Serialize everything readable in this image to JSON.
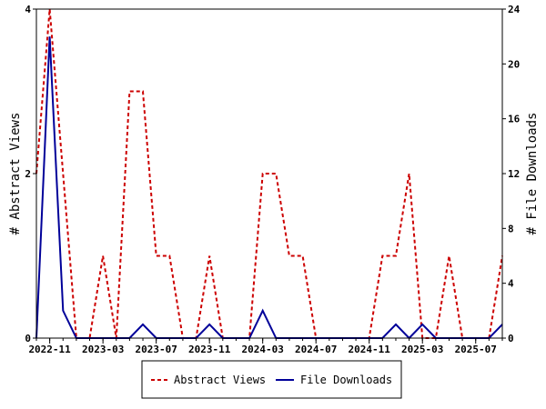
{
  "chart_data": {
    "type": "line",
    "x": [
      "2022-10",
      "2022-11",
      "2022-12",
      "2023-01",
      "2023-02",
      "2023-03",
      "2023-04",
      "2023-05",
      "2023-06",
      "2023-07",
      "2023-08",
      "2023-09",
      "2023-10",
      "2023-11",
      "2023-12",
      "2024-01",
      "2024-02",
      "2024-03",
      "2024-04",
      "2024-05",
      "2024-06",
      "2024-07",
      "2024-08",
      "2024-09",
      "2024-10",
      "2024-11",
      "2024-12",
      "2025-01",
      "2025-02",
      "2025-03",
      "2025-04",
      "2025-05",
      "2025-06",
      "2025-07",
      "2025-08",
      "2025-09"
    ],
    "series": [
      {
        "name": "Abstract Views",
        "axis": "left",
        "color": "#cc0000",
        "dash": "dashed",
        "values": [
          2,
          4,
          2,
          0,
          0,
          1,
          0,
          3,
          3,
          1,
          1,
          0,
          0,
          1,
          0,
          0,
          0,
          2,
          2,
          1,
          1,
          0,
          0,
          0,
          0,
          0,
          1,
          1,
          2,
          0,
          0,
          1,
          0,
          0,
          0,
          1
        ]
      },
      {
        "name": "File Downloads",
        "axis": "right",
        "color": "#000099",
        "dash": "solid",
        "values": [
          0,
          22,
          2,
          0,
          0,
          0,
          0,
          0,
          1,
          0,
          0,
          0,
          0,
          1,
          0,
          0,
          0,
          2,
          0,
          0,
          0,
          0,
          0,
          0,
          0,
          0,
          0,
          1,
          0,
          1,
          0,
          0,
          0,
          0,
          0,
          1
        ]
      }
    ],
    "x_tick_labels": [
      "2022-11",
      "2023-03",
      "2023-07",
      "2023-11",
      "2024-03",
      "2024-07",
      "2024-11",
      "2025-03",
      "2025-07"
    ],
    "y_left": {
      "label": "# Abstract Views",
      "range": [
        0,
        4
      ],
      "ticks": [
        0,
        2,
        4
      ]
    },
    "y_right": {
      "label": "# File Downloads",
      "range": [
        0,
        24
      ],
      "ticks": [
        0,
        4,
        8,
        12,
        16,
        20,
        24
      ]
    },
    "grid": false,
    "legend_position": "bottom"
  }
}
